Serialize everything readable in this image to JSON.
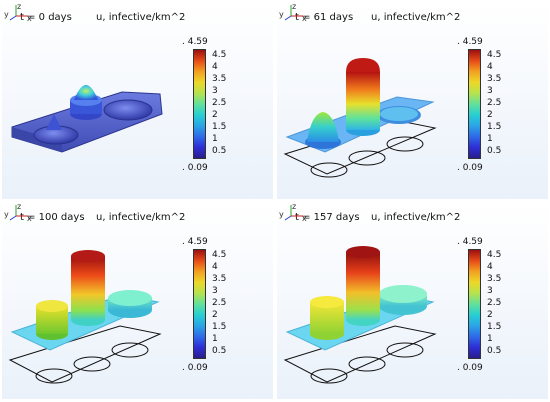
{
  "expression": "u, infective/km^2",
  "colorbar": {
    "max_label": ". 4.59",
    "min_label": ". 0.09",
    "ticks": [
      "4.5",
      "4",
      "3.5",
      "3",
      "2.5",
      "2",
      "1.5",
      "1",
      "0.5"
    ]
  },
  "axes_labels": {
    "y": "y",
    "z": "z",
    "x": "x"
  },
  "panels": [
    {
      "time": "t = 0 days"
    },
    {
      "time": "t = 61 days"
    },
    {
      "time": "t = 100 days"
    },
    {
      "time": "t = 157 days"
    }
  ],
  "colors": {
    "plate_blue": "#5060c8",
    "plate_cyan": "#6ab6f4",
    "frame_border": "#c8d0da"
  }
}
